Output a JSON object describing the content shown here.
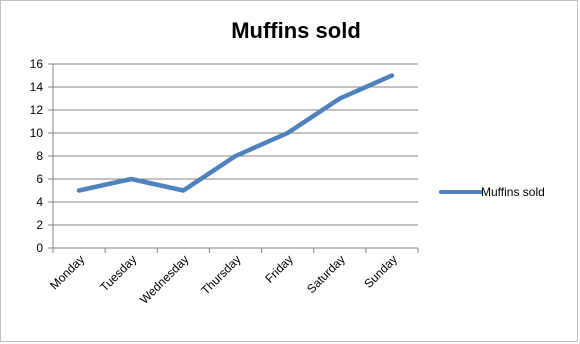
{
  "chart_data": {
    "type": "line",
    "title": "Muffins sold",
    "xlabel": "",
    "ylabel": "",
    "categories": [
      "Monday",
      "Tuesday",
      "Wednesday",
      "Thursday",
      "Friday",
      "Saturday",
      "Sunday"
    ],
    "series": [
      {
        "name": "Muffins sold",
        "values": [
          5,
          6,
          5,
          8,
          10,
          13,
          15
        ],
        "color": "#4f81bd"
      }
    ],
    "ylim": [
      0,
      16
    ],
    "yticks": [
      0,
      2,
      4,
      6,
      8,
      10,
      12,
      14,
      16
    ],
    "grid": true,
    "legend_position": "right"
  }
}
